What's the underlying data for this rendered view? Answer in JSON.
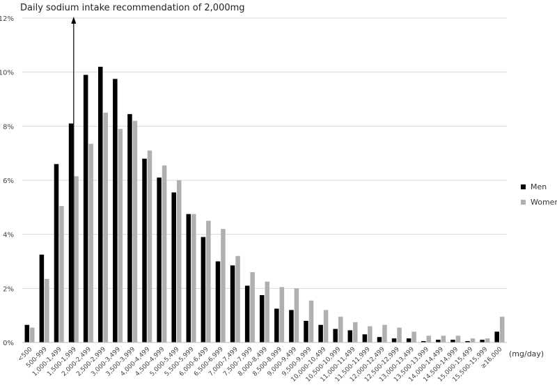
{
  "chart_data": {
    "type": "bar",
    "annotation": "Daily sodium intake recommendation of 2,000mg",
    "x_unit": "(mg/day)",
    "ylim": [
      0,
      12
    ],
    "yticks": [
      "0%",
      "2%",
      "4%",
      "6%",
      "8%",
      "10%",
      "12%"
    ],
    "grid": true,
    "legend_position": "right",
    "categories": [
      "<500",
      "500-999",
      "1,000-1,499",
      "1,500-1,999",
      "2,000-2,499",
      "2,500-2,999",
      "3,000-3,499",
      "3,500-3,999",
      "4,000-4,499",
      "4,500-4,999",
      "5,000-5,499",
      "5,500-5,999",
      "6,000-6,499",
      "6,500-6,999",
      "7,000-7,499",
      "7,500-7,999",
      "8,000-8,499",
      "8,500-8,999",
      "9,000-9,499",
      "9,500-9,999",
      "10,000-10,499",
      "10,500-10,999",
      "11,000-11,499",
      "11,500-11,999",
      "12,000-12,499",
      "12,500-12,999",
      "13,000-13,499",
      "13,500-13,999",
      "14,000-14,499",
      "14,500-14,999",
      "15,000-15,499",
      "15,500-15,999",
      "≥16,000"
    ],
    "series": [
      {
        "name": "Men",
        "color": "#000000",
        "values": [
          0.65,
          3.25,
          6.6,
          8.1,
          9.9,
          10.2,
          9.75,
          8.45,
          6.8,
          6.1,
          5.55,
          4.75,
          3.9,
          3.0,
          2.85,
          2.1,
          1.75,
          1.25,
          1.2,
          0.8,
          0.65,
          0.5,
          0.45,
          0.3,
          0.2,
          0.15,
          0.15,
          0.05,
          0.1,
          0.1,
          0.05,
          0.1,
          0.4
        ]
      },
      {
        "name": "Women",
        "color": "#b0b0b0",
        "values": [
          0.55,
          2.35,
          5.05,
          6.15,
          7.35,
          8.5,
          7.9,
          8.2,
          7.1,
          6.55,
          6.0,
          4.75,
          4.5,
          4.2,
          3.2,
          2.6,
          2.25,
          2.05,
          2.0,
          1.55,
          1.2,
          0.95,
          0.75,
          0.6,
          0.65,
          0.55,
          0.4,
          0.25,
          0.25,
          0.25,
          0.15,
          0.15,
          0.95
        ]
      }
    ],
    "marker_category_index": 3.5
  }
}
